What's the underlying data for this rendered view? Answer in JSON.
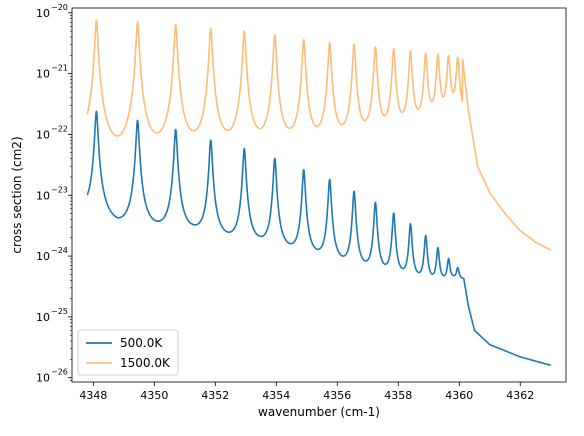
{
  "chart_data": {
    "type": "line",
    "xlabel": "wavenumber (cm-1)",
    "ylabel": "cross section (cm2)",
    "yscale": "log",
    "xlim": [
      4347.3,
      4363.5
    ],
    "ylim": [
      8.5e-27,
      1.2e-20
    ],
    "x_ticks": [
      {
        "value": 4348,
        "label": "4348"
      },
      {
        "value": 4350,
        "label": "4350"
      },
      {
        "value": 4352,
        "label": "4352"
      },
      {
        "value": 4354,
        "label": "4354"
      },
      {
        "value": 4356,
        "label": "4356"
      },
      {
        "value": 4358,
        "label": "4358"
      },
      {
        "value": 4360,
        "label": "4360"
      },
      {
        "value": 4362,
        "label": "4362"
      }
    ],
    "y_ticks": [
      {
        "value": 1e-26,
        "base": "10",
        "exp": "−26"
      },
      {
        "value": 1e-25,
        "base": "10",
        "exp": "−25"
      },
      {
        "value": 1e-24,
        "base": "10",
        "exp": "−24"
      },
      {
        "value": 1e-23,
        "base": "10",
        "exp": "−23"
      },
      {
        "value": 1e-22,
        "base": "10",
        "exp": "−22"
      },
      {
        "value": 1e-21,
        "base": "10",
        "exp": "−21"
      },
      {
        "value": 1e-20,
        "base": "10",
        "exp": "−20"
      }
    ],
    "legend_position": "lower-left",
    "series": [
      {
        "name": "500.0K",
        "color": "#1f77b4",
        "x_start": 4347.8,
        "x_end": 4363.0,
        "peaks": [
          {
            "x": 4348.1,
            "y": 2.4e-22
          },
          {
            "x": 4349.45,
            "y": 1.7e-22
          },
          {
            "x": 4350.7,
            "y": 1.2e-22
          },
          {
            "x": 4351.85,
            "y": 8e-23
          },
          {
            "x": 4352.95,
            "y": 5.8e-23
          },
          {
            "x": 4353.95,
            "y": 4e-23
          },
          {
            "x": 4354.9,
            "y": 2.6e-23
          },
          {
            "x": 4355.75,
            "y": 1.8e-23
          },
          {
            "x": 4356.55,
            "y": 1.15e-23
          },
          {
            "x": 4357.25,
            "y": 7.5e-24
          },
          {
            "x": 4357.85,
            "y": 5e-24
          },
          {
            "x": 4358.4,
            "y": 3.3e-24
          },
          {
            "x": 4358.9,
            "y": 2.1e-24
          },
          {
            "x": 4359.3,
            "y": 1.3e-24
          },
          {
            "x": 4359.65,
            "y": 8.5e-25
          },
          {
            "x": 4359.95,
            "y": 6e-25
          }
        ],
        "troughs": [
          {
            "x": 4347.8,
            "y": 4.7e-24
          },
          {
            "x": 4348.8,
            "y": 2.4e-24
          },
          {
            "x": 4350.1,
            "y": 2.1e-24
          },
          {
            "x": 4351.3,
            "y": 1.9e-24
          },
          {
            "x": 4352.4,
            "y": 1.4e-24
          },
          {
            "x": 4353.45,
            "y": 1.2e-24
          },
          {
            "x": 4354.45,
            "y": 9e-25
          },
          {
            "x": 4355.35,
            "y": 7e-25
          },
          {
            "x": 4356.15,
            "y": 5.5e-25
          },
          {
            "x": 4356.9,
            "y": 4.5e-25
          },
          {
            "x": 4357.55,
            "y": 4e-25
          },
          {
            "x": 4358.15,
            "y": 3.6e-25
          },
          {
            "x": 4358.65,
            "y": 3.3e-25
          },
          {
            "x": 4359.1,
            "y": 3.2e-25
          },
          {
            "x": 4359.5,
            "y": 3.4e-25
          },
          {
            "x": 4359.8,
            "y": 3.8e-25
          }
        ],
        "tail": [
          {
            "x": 4360.15,
            "y": 4.2e-25
          },
          {
            "x": 4360.3,
            "y": 1.5e-25
          },
          {
            "x": 4360.5,
            "y": 6e-26
          },
          {
            "x": 4361.0,
            "y": 3.5e-26
          },
          {
            "x": 4362.0,
            "y": 2.2e-26
          },
          {
            "x": 4363.0,
            "y": 1.6e-26
          }
        ]
      },
      {
        "name": "1500.0K",
        "color": "#ffbb78",
        "x_start": 4347.8,
        "x_end": 4363.0,
        "peaks": [
          {
            "x": 4348.1,
            "y": 7.5e-21
          },
          {
            "x": 4349.45,
            "y": 7e-21
          },
          {
            "x": 4350.7,
            "y": 6.3e-21
          },
          {
            "x": 4351.85,
            "y": 5.5e-21
          },
          {
            "x": 4352.95,
            "y": 5e-21
          },
          {
            "x": 4353.95,
            "y": 4.3e-21
          },
          {
            "x": 4354.9,
            "y": 3.6e-21
          },
          {
            "x": 4355.75,
            "y": 3.2e-21
          },
          {
            "x": 4356.55,
            "y": 3e-21
          },
          {
            "x": 4357.25,
            "y": 2.7e-21
          },
          {
            "x": 4357.85,
            "y": 2.5e-21
          },
          {
            "x": 4358.4,
            "y": 2.3e-21
          },
          {
            "x": 4358.9,
            "y": 2.1e-21
          },
          {
            "x": 4359.3,
            "y": 2e-21
          },
          {
            "x": 4359.65,
            "y": 1.9e-21
          },
          {
            "x": 4359.95,
            "y": 1.8e-21
          }
        ],
        "troughs": [
          {
            "x": 4347.8,
            "y": 4.3e-23
          },
          {
            "x": 4348.8,
            "y": 2.4e-23
          },
          {
            "x": 4350.1,
            "y": 2.8e-23
          },
          {
            "x": 4351.3,
            "y": 3.1e-23
          },
          {
            "x": 4352.4,
            "y": 3.4e-23
          },
          {
            "x": 4353.45,
            "y": 3.7e-23
          },
          {
            "x": 4354.45,
            "y": 4.2e-23
          },
          {
            "x": 4355.35,
            "y": 4.6e-23
          },
          {
            "x": 4356.15,
            "y": 5.2e-23
          },
          {
            "x": 4356.9,
            "y": 6e-23
          },
          {
            "x": 4357.55,
            "y": 7e-23
          },
          {
            "x": 4358.15,
            "y": 8.5e-23
          },
          {
            "x": 4358.65,
            "y": 1e-22
          },
          {
            "x": 4359.1,
            "y": 1.3e-22
          },
          {
            "x": 4359.5,
            "y": 1.6e-22
          },
          {
            "x": 4359.8,
            "y": 1.9e-22
          }
        ],
        "tail": [
          {
            "x": 4360.1,
            "y": 1.9e-21
          },
          {
            "x": 4360.3,
            "y": 2.5e-22
          },
          {
            "x": 4360.6,
            "y": 3e-23
          },
          {
            "x": 4361.0,
            "y": 1.1e-23
          },
          {
            "x": 4361.5,
            "y": 5e-24
          },
          {
            "x": 4362.0,
            "y": 2.6e-24
          },
          {
            "x": 4362.5,
            "y": 1.7e-24
          },
          {
            "x": 4363.0,
            "y": 1.25e-24
          }
        ]
      }
    ]
  }
}
